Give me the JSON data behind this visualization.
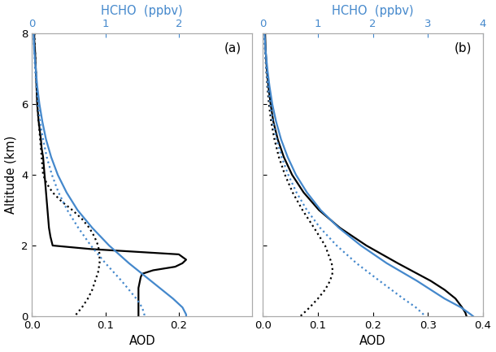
{
  "panel_a": {
    "title": "(a)",
    "aod_xlim": [
      0.0,
      0.3
    ],
    "hcho_xlim": [
      0.0,
      3.0
    ],
    "aod_xticks": [
      0.0,
      0.1,
      0.2
    ],
    "hcho_xticks": [
      0,
      1,
      2
    ],
    "ylabel": "Altitude (km)",
    "ylim": [
      0,
      8
    ],
    "yticks": [
      0,
      2,
      4,
      6,
      8
    ],
    "xlabel_aod": "AOD",
    "xlabel_hcho": "HCHO  (ppbv)",
    "aod_solid_alt": [
      8.0,
      7.8,
      7.5,
      7.0,
      6.5,
      6.0,
      5.5,
      5.0,
      4.75,
      4.5,
      4.25,
      4.0,
      3.75,
      3.5,
      3.25,
      3.0,
      2.75,
      2.5,
      2.25,
      2.0,
      1.9,
      1.75,
      1.6,
      1.5,
      1.4,
      1.3,
      1.2,
      1.1,
      1.0,
      0.9,
      0.8,
      0.7,
      0.6,
      0.5,
      0.4,
      0.3,
      0.2,
      0.1,
      0.0
    ],
    "aod_solid_val": [
      0.003,
      0.003,
      0.004,
      0.005,
      0.006,
      0.007,
      0.009,
      0.012,
      0.013,
      0.015,
      0.016,
      0.017,
      0.018,
      0.019,
      0.02,
      0.021,
      0.022,
      0.023,
      0.025,
      0.028,
      0.08,
      0.2,
      0.21,
      0.205,
      0.195,
      0.165,
      0.15,
      0.148,
      0.147,
      0.146,
      0.145,
      0.145,
      0.145,
      0.145,
      0.145,
      0.145,
      0.145,
      0.145,
      0.145
    ],
    "aod_dotted_alt": [
      8.0,
      7.5,
      7.0,
      6.5,
      6.0,
      5.5,
      5.0,
      4.5,
      4.0,
      3.75,
      3.5,
      3.25,
      3.0,
      2.75,
      2.5,
      2.25,
      2.0,
      1.75,
      1.5,
      1.25,
      1.0,
      0.75,
      0.5,
      0.25,
      0.1,
      0.0
    ],
    "aod_dotted_val": [
      0.003,
      0.004,
      0.005,
      0.006,
      0.007,
      0.009,
      0.011,
      0.013,
      0.015,
      0.02,
      0.028,
      0.04,
      0.055,
      0.068,
      0.078,
      0.085,
      0.09,
      0.092,
      0.092,
      0.09,
      0.086,
      0.082,
      0.076,
      0.068,
      0.062,
      0.058
    ],
    "hcho_solid_alt": [
      8.0,
      7.5,
      7.0,
      6.5,
      6.0,
      5.5,
      5.0,
      4.5,
      4.0,
      3.5,
      3.0,
      2.5,
      2.0,
      1.5,
      1.0,
      0.5,
      0.25,
      0.05,
      0.0
    ],
    "hcho_solid_val": [
      0.02,
      0.03,
      0.05,
      0.07,
      0.1,
      0.14,
      0.19,
      0.26,
      0.35,
      0.47,
      0.62,
      0.82,
      1.05,
      1.32,
      1.62,
      1.92,
      2.05,
      2.1,
      2.1
    ],
    "hcho_dotted_alt": [
      8.0,
      7.5,
      7.0,
      6.5,
      6.0,
      5.5,
      5.0,
      4.5,
      4.0,
      3.5,
      3.0,
      2.5,
      2.0,
      1.5,
      1.0,
      0.5,
      0.25,
      0.05,
      0.0
    ],
    "hcho_dotted_val": [
      0.02,
      0.03,
      0.04,
      0.06,
      0.08,
      0.11,
      0.15,
      0.2,
      0.27,
      0.36,
      0.48,
      0.63,
      0.8,
      1.0,
      1.22,
      1.42,
      1.5,
      1.53,
      1.53
    ]
  },
  "panel_b": {
    "title": "(b)",
    "aod_xlim": [
      0.0,
      0.4
    ],
    "hcho_xlim": [
      0.0,
      4.0
    ],
    "aod_xticks": [
      0.0,
      0.1,
      0.2,
      0.3,
      0.4
    ],
    "hcho_xticks": [
      0,
      1,
      2,
      3,
      4
    ],
    "ylim": [
      0,
      8
    ],
    "yticks": [
      0,
      2,
      4,
      6,
      8
    ],
    "xlabel_aod": "AOD",
    "xlabel_hcho": "HCHO  (ppbv)",
    "aod_solid_alt": [
      8.0,
      7.5,
      7.0,
      6.5,
      6.0,
      5.5,
      5.0,
      4.5,
      4.0,
      3.5,
      3.0,
      2.5,
      2.0,
      1.5,
      1.0,
      0.75,
      0.5,
      0.25,
      0.1,
      0.0
    ],
    "aod_solid_val": [
      0.004,
      0.005,
      0.007,
      0.01,
      0.014,
      0.019,
      0.027,
      0.038,
      0.053,
      0.074,
      0.102,
      0.14,
      0.188,
      0.245,
      0.305,
      0.33,
      0.35,
      0.362,
      0.368,
      0.37
    ],
    "aod_dotted_alt": [
      8.0,
      7.5,
      7.0,
      6.5,
      6.0,
      5.5,
      5.0,
      4.5,
      4.0,
      3.5,
      3.0,
      2.5,
      2.0,
      1.5,
      1.25,
      1.0,
      0.75,
      0.5,
      0.25,
      0.1,
      0.0
    ],
    "aod_dotted_val": [
      0.003,
      0.004,
      0.006,
      0.008,
      0.011,
      0.015,
      0.021,
      0.029,
      0.04,
      0.054,
      0.072,
      0.093,
      0.113,
      0.125,
      0.127,
      0.122,
      0.113,
      0.1,
      0.085,
      0.075,
      0.068
    ],
    "hcho_solid_alt": [
      8.0,
      7.5,
      7.0,
      6.5,
      6.0,
      5.5,
      5.0,
      4.5,
      4.0,
      3.5,
      3.0,
      2.5,
      2.0,
      1.5,
      1.0,
      0.5,
      0.25,
      0.05,
      0.0
    ],
    "hcho_solid_val": [
      0.03,
      0.05,
      0.08,
      0.12,
      0.17,
      0.24,
      0.33,
      0.45,
      0.6,
      0.8,
      1.05,
      1.38,
      1.78,
      2.25,
      2.8,
      3.3,
      3.6,
      3.78,
      3.82
    ],
    "hcho_dotted_alt": [
      8.0,
      7.5,
      7.0,
      6.5,
      6.0,
      5.5,
      5.0,
      4.5,
      4.0,
      3.5,
      3.0,
      2.5,
      2.0,
      1.5,
      1.0,
      0.5,
      0.25,
      0.05,
      0.0
    ],
    "hcho_dotted_val": [
      0.02,
      0.04,
      0.06,
      0.09,
      0.13,
      0.18,
      0.25,
      0.34,
      0.46,
      0.61,
      0.8,
      1.04,
      1.34,
      1.7,
      2.12,
      2.55,
      2.78,
      2.92,
      2.95
    ]
  },
  "colors": {
    "black": "#000000",
    "blue": "#4488CC",
    "background": "#ffffff"
  },
  "linewidth": 1.6,
  "fontsize": 10.5
}
